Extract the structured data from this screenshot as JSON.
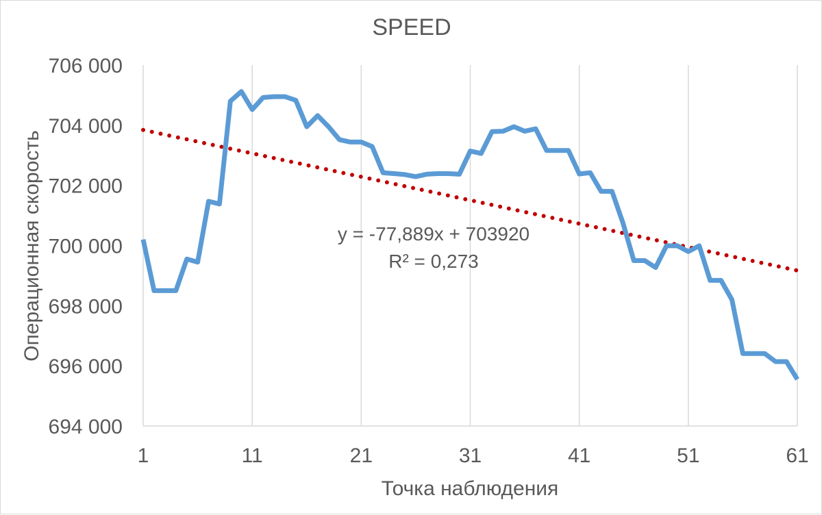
{
  "chart_data": {
    "type": "line",
    "title": "SPEED",
    "xlabel": "Точка наблюдения",
    "ylabel": "Операционная скорость",
    "xlim": [
      1,
      61
    ],
    "ylim": [
      694000,
      706000
    ],
    "x_ticks": [
      1,
      11,
      21,
      31,
      41,
      51,
      61
    ],
    "x_tick_labels": [
      "1",
      "11",
      "21",
      "31",
      "41",
      "51",
      "61"
    ],
    "y_ticks": [
      694000,
      696000,
      698000,
      700000,
      702000,
      704000,
      706000
    ],
    "y_tick_labels": [
      "694 000",
      "696 000",
      "698 000",
      "700 000",
      "702 000",
      "704 000",
      "706 000"
    ],
    "grid": {
      "vertical": true,
      "horizontal": false
    },
    "series": [
      {
        "color": "#5b9bd5",
        "x": [
          1,
          2,
          3,
          4,
          5,
          6,
          7,
          8,
          9,
          10,
          11,
          12,
          13,
          14,
          15,
          16,
          17,
          18,
          19,
          20,
          21,
          22,
          23,
          24,
          25,
          26,
          27,
          28,
          29,
          30,
          31,
          32,
          33,
          34,
          35,
          36,
          37,
          38,
          39,
          40,
          41,
          42,
          43,
          44,
          45,
          46,
          47,
          48,
          49,
          50,
          51,
          52,
          53,
          54,
          55,
          56,
          57,
          58,
          59,
          60,
          61
        ],
        "values": [
          700200,
          698500,
          698500,
          698500,
          699550,
          699450,
          701470,
          701380,
          704800,
          705120,
          704520,
          704920,
          704950,
          704950,
          704830,
          703950,
          704320,
          703950,
          703520,
          703440,
          703440,
          703290,
          702420,
          702390,
          702360,
          702290,
          702370,
          702390,
          702390,
          702370,
          703140,
          703060,
          703790,
          703800,
          703950,
          703800,
          703880,
          703160,
          703160,
          703160,
          702380,
          702420,
          701800,
          701800,
          700760,
          699500,
          699500,
          699270,
          699990,
          699990,
          699800,
          699990,
          698840,
          698840,
          698200,
          696410,
          696410,
          696410,
          696140,
          696140,
          695550
        ]
      }
    ],
    "trendline": {
      "type": "linear",
      "style": "dotted",
      "color": "#c00000",
      "slope": -77.889,
      "intercept": 703920,
      "equation_label": "y = -77,889x + 703920",
      "r2_label": "R² = 0,273"
    }
  }
}
